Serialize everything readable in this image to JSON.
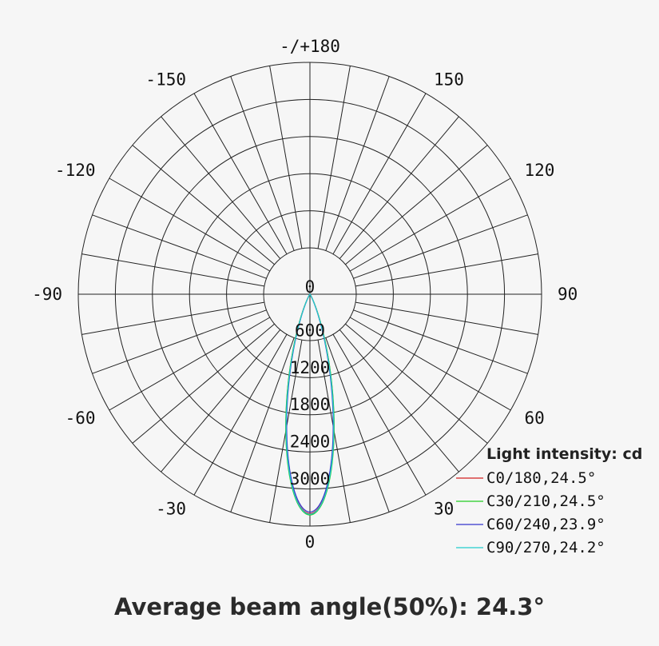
{
  "chart_data": {
    "type": "polar",
    "angle_labels": [
      {
        "value": 0,
        "text": "0"
      },
      {
        "value": 30,
        "text": "30"
      },
      {
        "value": 60,
        "text": "60"
      },
      {
        "value": 90,
        "text": "90"
      },
      {
        "value": 120,
        "text": "120"
      },
      {
        "value": 150,
        "text": "150"
      },
      {
        "value": 180,
        "text": "-/+180"
      },
      {
        "value": -150,
        "text": "-150"
      },
      {
        "value": -120,
        "text": "-120"
      },
      {
        "value": -90,
        "text": "-90"
      },
      {
        "value": -60,
        "text": "-60"
      },
      {
        "value": -30,
        "text": "-30"
      }
    ],
    "angle_grid_step": 10,
    "radial_ticks": [
      0,
      600,
      1200,
      1800,
      2400,
      3000
    ],
    "radial_max": 3000,
    "legend_title": "Light intensity: cd",
    "series": [
      {
        "name": "C0/180,24.5°",
        "color": "#d42020",
        "peak": 2960,
        "beam_angle": 24.5
      },
      {
        "name": "C30/210,24.5°",
        "color": "#22cc22",
        "peak": 2980,
        "beam_angle": 24.5
      },
      {
        "name": "C60/240,23.9°",
        "color": "#3333cc",
        "peak": 2940,
        "beam_angle": 23.9
      },
      {
        "name": "C90/270,24.2°",
        "color": "#22cccc",
        "peak": 2970,
        "beam_angle": 24.2
      }
    ]
  },
  "footer": {
    "text": "Average beam angle(50%): 24.3°"
  }
}
